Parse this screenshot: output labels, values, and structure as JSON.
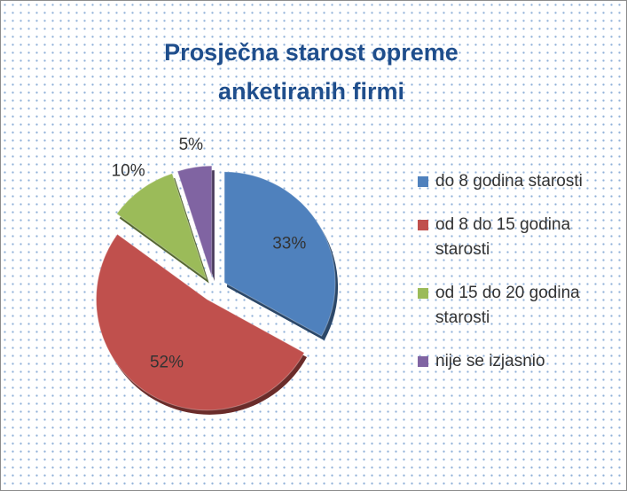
{
  "chart_data": {
    "type": "pie",
    "title": "Prosječna starost opreme anketiranih firmi",
    "categories": [
      "do 8 godina starosti",
      "od 8 do 15 godina starosti",
      "od 15 do 20 godina starosti",
      "nije se izjasnio"
    ],
    "values": [
      33,
      52,
      10,
      5
    ],
    "value_labels": [
      "33%",
      "52%",
      "10%",
      "5%"
    ],
    "colors": [
      "#4f81bd",
      "#c0504d",
      "#9bbb59",
      "#8064a2"
    ],
    "legend": "right"
  }
}
